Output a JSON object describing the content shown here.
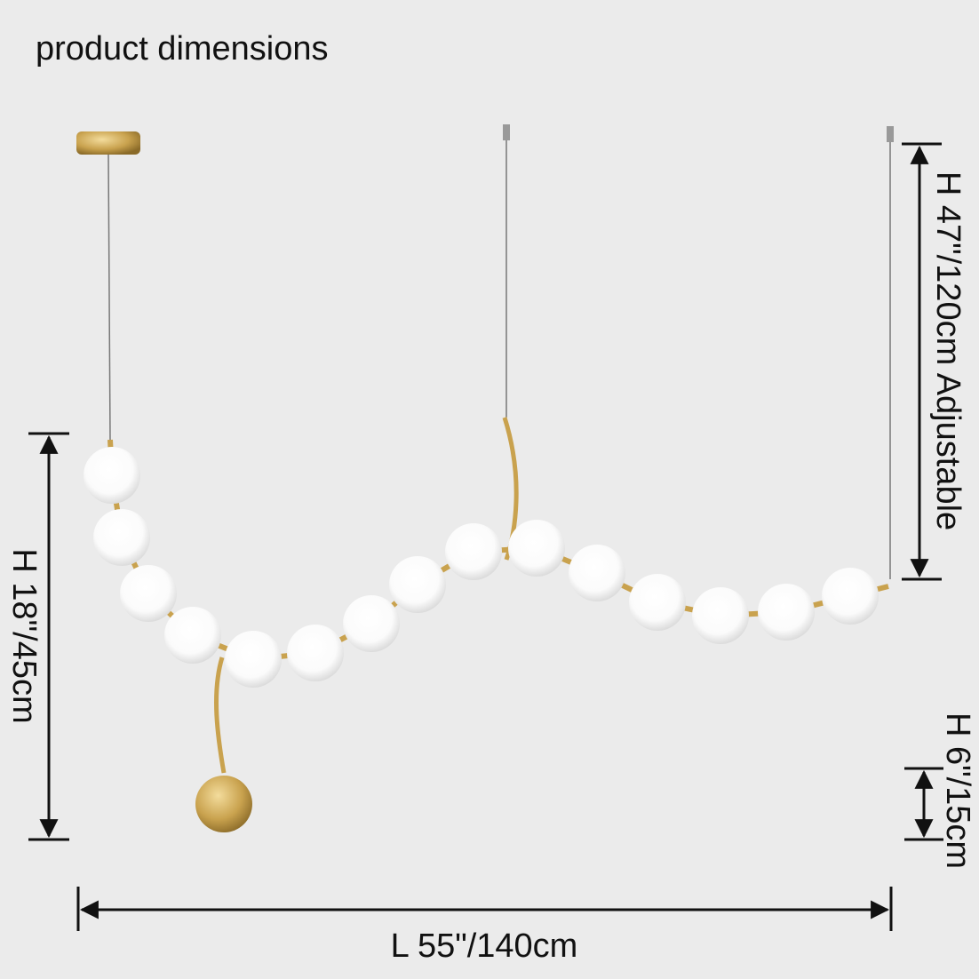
{
  "header": {
    "title": "product dimensions"
  },
  "dimensions": {
    "cord_height": "H 47\"/120cm Adjustable",
    "body_height": "H 18\"/45cm",
    "pendant_height": "H 6\"/15cm",
    "length": "L 55\"/140cm"
  }
}
